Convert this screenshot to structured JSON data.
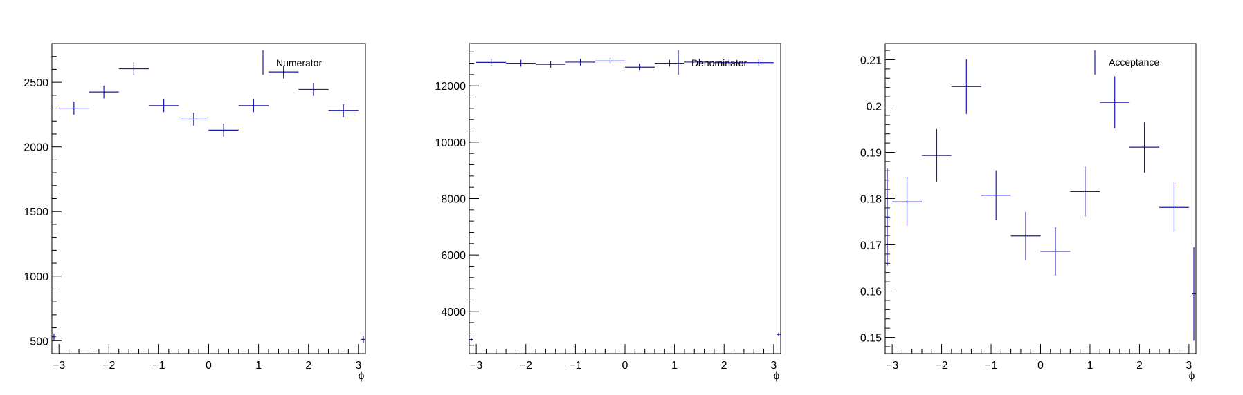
{
  "colors": {
    "marker": "#1a1aa8",
    "axis": "#000000",
    "background": "#ffffff"
  },
  "chart_data": [
    {
      "type": "scatter",
      "style": "error-bars",
      "title": "",
      "xlabel": "ϕ",
      "ylabel": "",
      "xlim": [
        -3.1416,
        3.1416
      ],
      "ylim": [
        400,
        2800
      ],
      "yticks": [
        500,
        1000,
        1500,
        2000,
        2500
      ],
      "ytick_labels": [
        "500",
        "1000",
        "1500",
        "2000",
        "2500"
      ],
      "xticks": [
        -3,
        -2,
        -1,
        0,
        1,
        2,
        3
      ],
      "xtick_labels": [
        "−3",
        "−2",
        "−1",
        "0",
        "1",
        "2",
        "3"
      ],
      "legend": {
        "entries": [
          "Numerator"
        ],
        "position": "top-right"
      },
      "grid": false,
      "series": [
        {
          "name": "Numerator",
          "x": [
            -3.1,
            -2.7,
            -2.1,
            -1.5,
            -0.9,
            -0.3,
            0.3,
            0.9,
            1.5,
            2.1,
            2.7,
            3.1
          ],
          "xerr": [
            0.04,
            0.3,
            0.3,
            0.3,
            0.3,
            0.3,
            0.3,
            0.3,
            0.3,
            0.3,
            0.3,
            0.04
          ],
          "y": [
            530,
            2300,
            2425,
            2605,
            2320,
            2215,
            2130,
            2320,
            2580,
            2445,
            2280,
            510
          ],
          "yerr": [
            25,
            50,
            50,
            50,
            50,
            50,
            50,
            50,
            50,
            50,
            50,
            25
          ]
        }
      ]
    },
    {
      "type": "scatter",
      "style": "error-bars",
      "title": "",
      "xlabel": "ϕ",
      "ylabel": "",
      "xlim": [
        -3.1416,
        3.1416
      ],
      "ylim": [
        2500,
        13500
      ],
      "yticks": [
        4000,
        6000,
        8000,
        10000,
        12000
      ],
      "ytick_labels": [
        "4000",
        "6000",
        "8000",
        "10000",
        "12000"
      ],
      "xticks": [
        -3,
        -2,
        -1,
        0,
        1,
        2,
        3
      ],
      "xtick_labels": [
        "−3",
        "−2",
        "−1",
        "0",
        "1",
        "2",
        "3"
      ],
      "legend": {
        "entries": [
          "Denominator"
        ],
        "position": "top-right"
      },
      "grid": false,
      "series": [
        {
          "name": "Denominator",
          "x": [
            -3.1,
            -2.7,
            -2.1,
            -1.5,
            -0.9,
            -0.3,
            0.3,
            0.9,
            1.5,
            2.1,
            2.7,
            3.1
          ],
          "xerr": [
            0.04,
            0.3,
            0.3,
            0.3,
            0.3,
            0.3,
            0.3,
            0.3,
            0.3,
            0.3,
            0.3,
            0.04
          ],
          "y": [
            3000,
            12830,
            12800,
            12760,
            12840,
            12880,
            12660,
            12800,
            12840,
            12820,
            12820,
            3180
          ],
          "yerr": [
            50,
            120,
            120,
            120,
            120,
            120,
            120,
            120,
            120,
            120,
            120,
            60
          ]
        }
      ]
    },
    {
      "type": "scatter",
      "style": "error-bars",
      "title": "",
      "xlabel": "ϕ",
      "ylabel": "",
      "xlim": [
        -3.1416,
        3.1416
      ],
      "ylim": [
        0.1465,
        0.2135
      ],
      "yticks": [
        0.15,
        0.16,
        0.17,
        0.18,
        0.19,
        0.2,
        0.21
      ],
      "ytick_labels": [
        "0.15",
        "0.16",
        "0.17",
        "0.18",
        "0.19",
        "0.2",
        "0.21"
      ],
      "xticks": [
        -3,
        -2,
        -1,
        0,
        1,
        2,
        3
      ],
      "xtick_labels": [
        "−3",
        "−2",
        "−1",
        "0",
        "1",
        "2",
        "3"
      ],
      "legend": {
        "entries": [
          "Acceptance"
        ],
        "position": "top-right"
      },
      "grid": false,
      "series": [
        {
          "name": "Acceptance",
          "x": [
            -3.1,
            -2.7,
            -2.1,
            -1.5,
            -0.9,
            -0.3,
            0.3,
            0.9,
            1.5,
            2.1,
            2.7,
            3.1
          ],
          "xerr": [
            0.04,
            0.3,
            0.3,
            0.3,
            0.3,
            0.3,
            0.3,
            0.3,
            0.3,
            0.3,
            0.3,
            0.04
          ],
          "y": [
            0.176,
            0.1793,
            0.1893,
            0.2042,
            0.1807,
            0.1719,
            0.1686,
            0.1815,
            0.2008,
            0.1911,
            0.1781,
            0.1594
          ],
          "yerr": [
            0.0105,
            0.0053,
            0.0057,
            0.0059,
            0.0054,
            0.0052,
            0.0052,
            0.0054,
            0.0056,
            0.0055,
            0.0053,
            0.0101
          ]
        }
      ]
    }
  ]
}
